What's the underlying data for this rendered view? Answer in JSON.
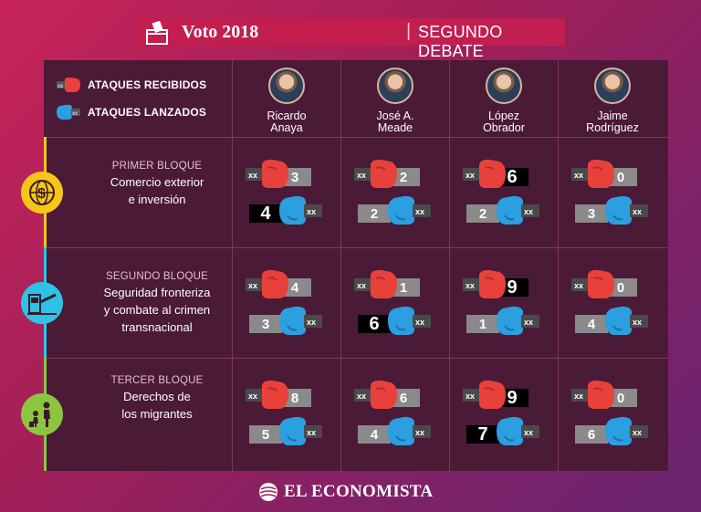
{
  "header": {
    "title_bold": "Voto 2018",
    "separator": "|",
    "title_light": "SEGUNDO DEBATE PRESIDENCIAL"
  },
  "legend": {
    "received": "ATAQUES RECIBIDOS",
    "launched": "ATAQUES LANZADOS"
  },
  "candidates": [
    {
      "first": "Ricardo",
      "last": "Anaya"
    },
    {
      "first": "José A.",
      "last": "Meade"
    },
    {
      "first": "López",
      "last": "Obrador"
    },
    {
      "first": "Jaime",
      "last": "Rodríguez"
    }
  ],
  "blocks": [
    {
      "kicker": "PRIMER BLOQUE",
      "desc_lines": [
        "Comercio exterior",
        "e inversión"
      ],
      "icon": "globe-money-icon",
      "color": "#f5c518",
      "received": [
        3,
        2,
        6,
        0
      ],
      "launched": [
        4,
        2,
        2,
        3
      ]
    },
    {
      "kicker": "SEGUNDO BLOQUE",
      "desc_lines": [
        "Seguridad fronteriza",
        "y combate al crimen",
        "transnacional"
      ],
      "icon": "border-checkpoint-icon",
      "color": "#2ec3e6",
      "received": [
        4,
        1,
        9,
        0
      ],
      "launched": [
        3,
        6,
        1,
        4
      ]
    },
    {
      "kicker": "TERCER BLOQUE",
      "desc_lines": [
        "Derechos de",
        "los migrantes"
      ],
      "icon": "migrants-icon",
      "color": "#8cc63f",
      "received": [
        8,
        6,
        9,
        0
      ],
      "launched": [
        5,
        4,
        7,
        6
      ]
    }
  ],
  "highlight": {
    "received": [
      [
        false,
        false,
        true,
        false
      ],
      [
        false,
        false,
        true,
        false
      ],
      [
        false,
        false,
        true,
        false
      ]
    ],
    "launched": [
      [
        true,
        false,
        false,
        false
      ],
      [
        false,
        true,
        false,
        false
      ],
      [
        false,
        false,
        true,
        false
      ]
    ]
  },
  "colors": {
    "received_glove": "#e8413c",
    "launched_glove": "#2b9fe0"
  },
  "footer": {
    "brand": "EL ECONOMISTA"
  }
}
